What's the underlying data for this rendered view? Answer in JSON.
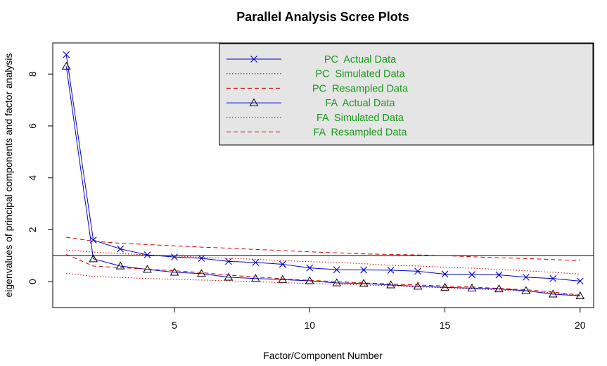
{
  "chart_data": {
    "type": "line",
    "title": "Parallel Analysis Scree Plots",
    "xlabel": "Factor/Component Number",
    "ylabel": "eigenvalues of principal components and factor analysis",
    "xlim": [
      0.5,
      20.5
    ],
    "ylim": [
      -1,
      9.2
    ],
    "x_ticks": [
      5,
      10,
      15,
      20
    ],
    "y_ticks": [
      0,
      2,
      4,
      6,
      8
    ],
    "reference_line": 1,
    "grid": false,
    "legend_position": "top-right",
    "x": [
      1,
      2,
      3,
      4,
      5,
      6,
      7,
      8,
      9,
      10,
      11,
      12,
      13,
      14,
      15,
      16,
      17,
      18,
      19,
      20
    ],
    "series": [
      {
        "name": "PC  Actual Data",
        "style": "solid",
        "marker": "x",
        "color": "#0000cc",
        "values": [
          8.75,
          1.6,
          1.26,
          1.03,
          0.95,
          0.9,
          0.78,
          0.74,
          0.67,
          0.53,
          0.46,
          0.45,
          0.44,
          0.4,
          0.29,
          0.27,
          0.26,
          0.17,
          0.12,
          0.02
        ]
      },
      {
        "name": "PC  Simulated Data",
        "style": "dotted",
        "marker": "none",
        "color": "#cc0000",
        "values": [
          1.22,
          1.14,
          1.08,
          1.03,
          0.99,
          0.94,
          0.9,
          0.86,
          0.81,
          0.77,
          0.74,
          0.69,
          0.63,
          0.6,
          0.56,
          0.52,
          0.47,
          0.42,
          0.36,
          0.29
        ]
      },
      {
        "name": "PC  Resampled Data",
        "style": "dashed",
        "marker": "none",
        "color": "#cc0000",
        "values": [
          1.71,
          1.56,
          1.48,
          1.43,
          1.38,
          1.33,
          1.29,
          1.24,
          1.2,
          1.15,
          1.11,
          1.07,
          1.05,
          1.03,
          1.0,
          0.96,
          0.92,
          0.89,
          0.85,
          0.81
        ]
      },
      {
        "name": "FA  Actual Data",
        "style": "solid",
        "marker": "triangle",
        "color": "#0000cc",
        "values": [
          8.3,
          0.88,
          0.6,
          0.47,
          0.36,
          0.31,
          0.17,
          0.12,
          0.08,
          0.03,
          -0.05,
          -0.07,
          -0.13,
          -0.18,
          -0.22,
          -0.25,
          -0.28,
          -0.35,
          -0.48,
          -0.55
        ]
      },
      {
        "name": "FA  Simulated Data",
        "style": "dotted",
        "marker": "none",
        "color": "#cc0000",
        "values": [
          0.32,
          0.2,
          0.16,
          0.12,
          0.09,
          0.06,
          0.03,
          0.0,
          -0.04,
          -0.07,
          -0.1,
          -0.13,
          -0.16,
          -0.2,
          -0.24,
          -0.28,
          -0.32,
          -0.37,
          -0.43,
          -0.53
        ]
      },
      {
        "name": "FA  Resampled Data",
        "style": "dashed",
        "marker": "none",
        "color": "#cc0000",
        "values": [
          1.05,
          0.6,
          0.54,
          0.48,
          0.42,
          0.35,
          0.25,
          0.18,
          0.11,
          0.05,
          0.0,
          -0.05,
          -0.09,
          -0.13,
          -0.17,
          -0.21,
          -0.26,
          -0.31,
          -0.4,
          -0.52
        ]
      }
    ],
    "legend_text_color": "#1a9a1a",
    "legend_bg": "#e5e5e5"
  }
}
